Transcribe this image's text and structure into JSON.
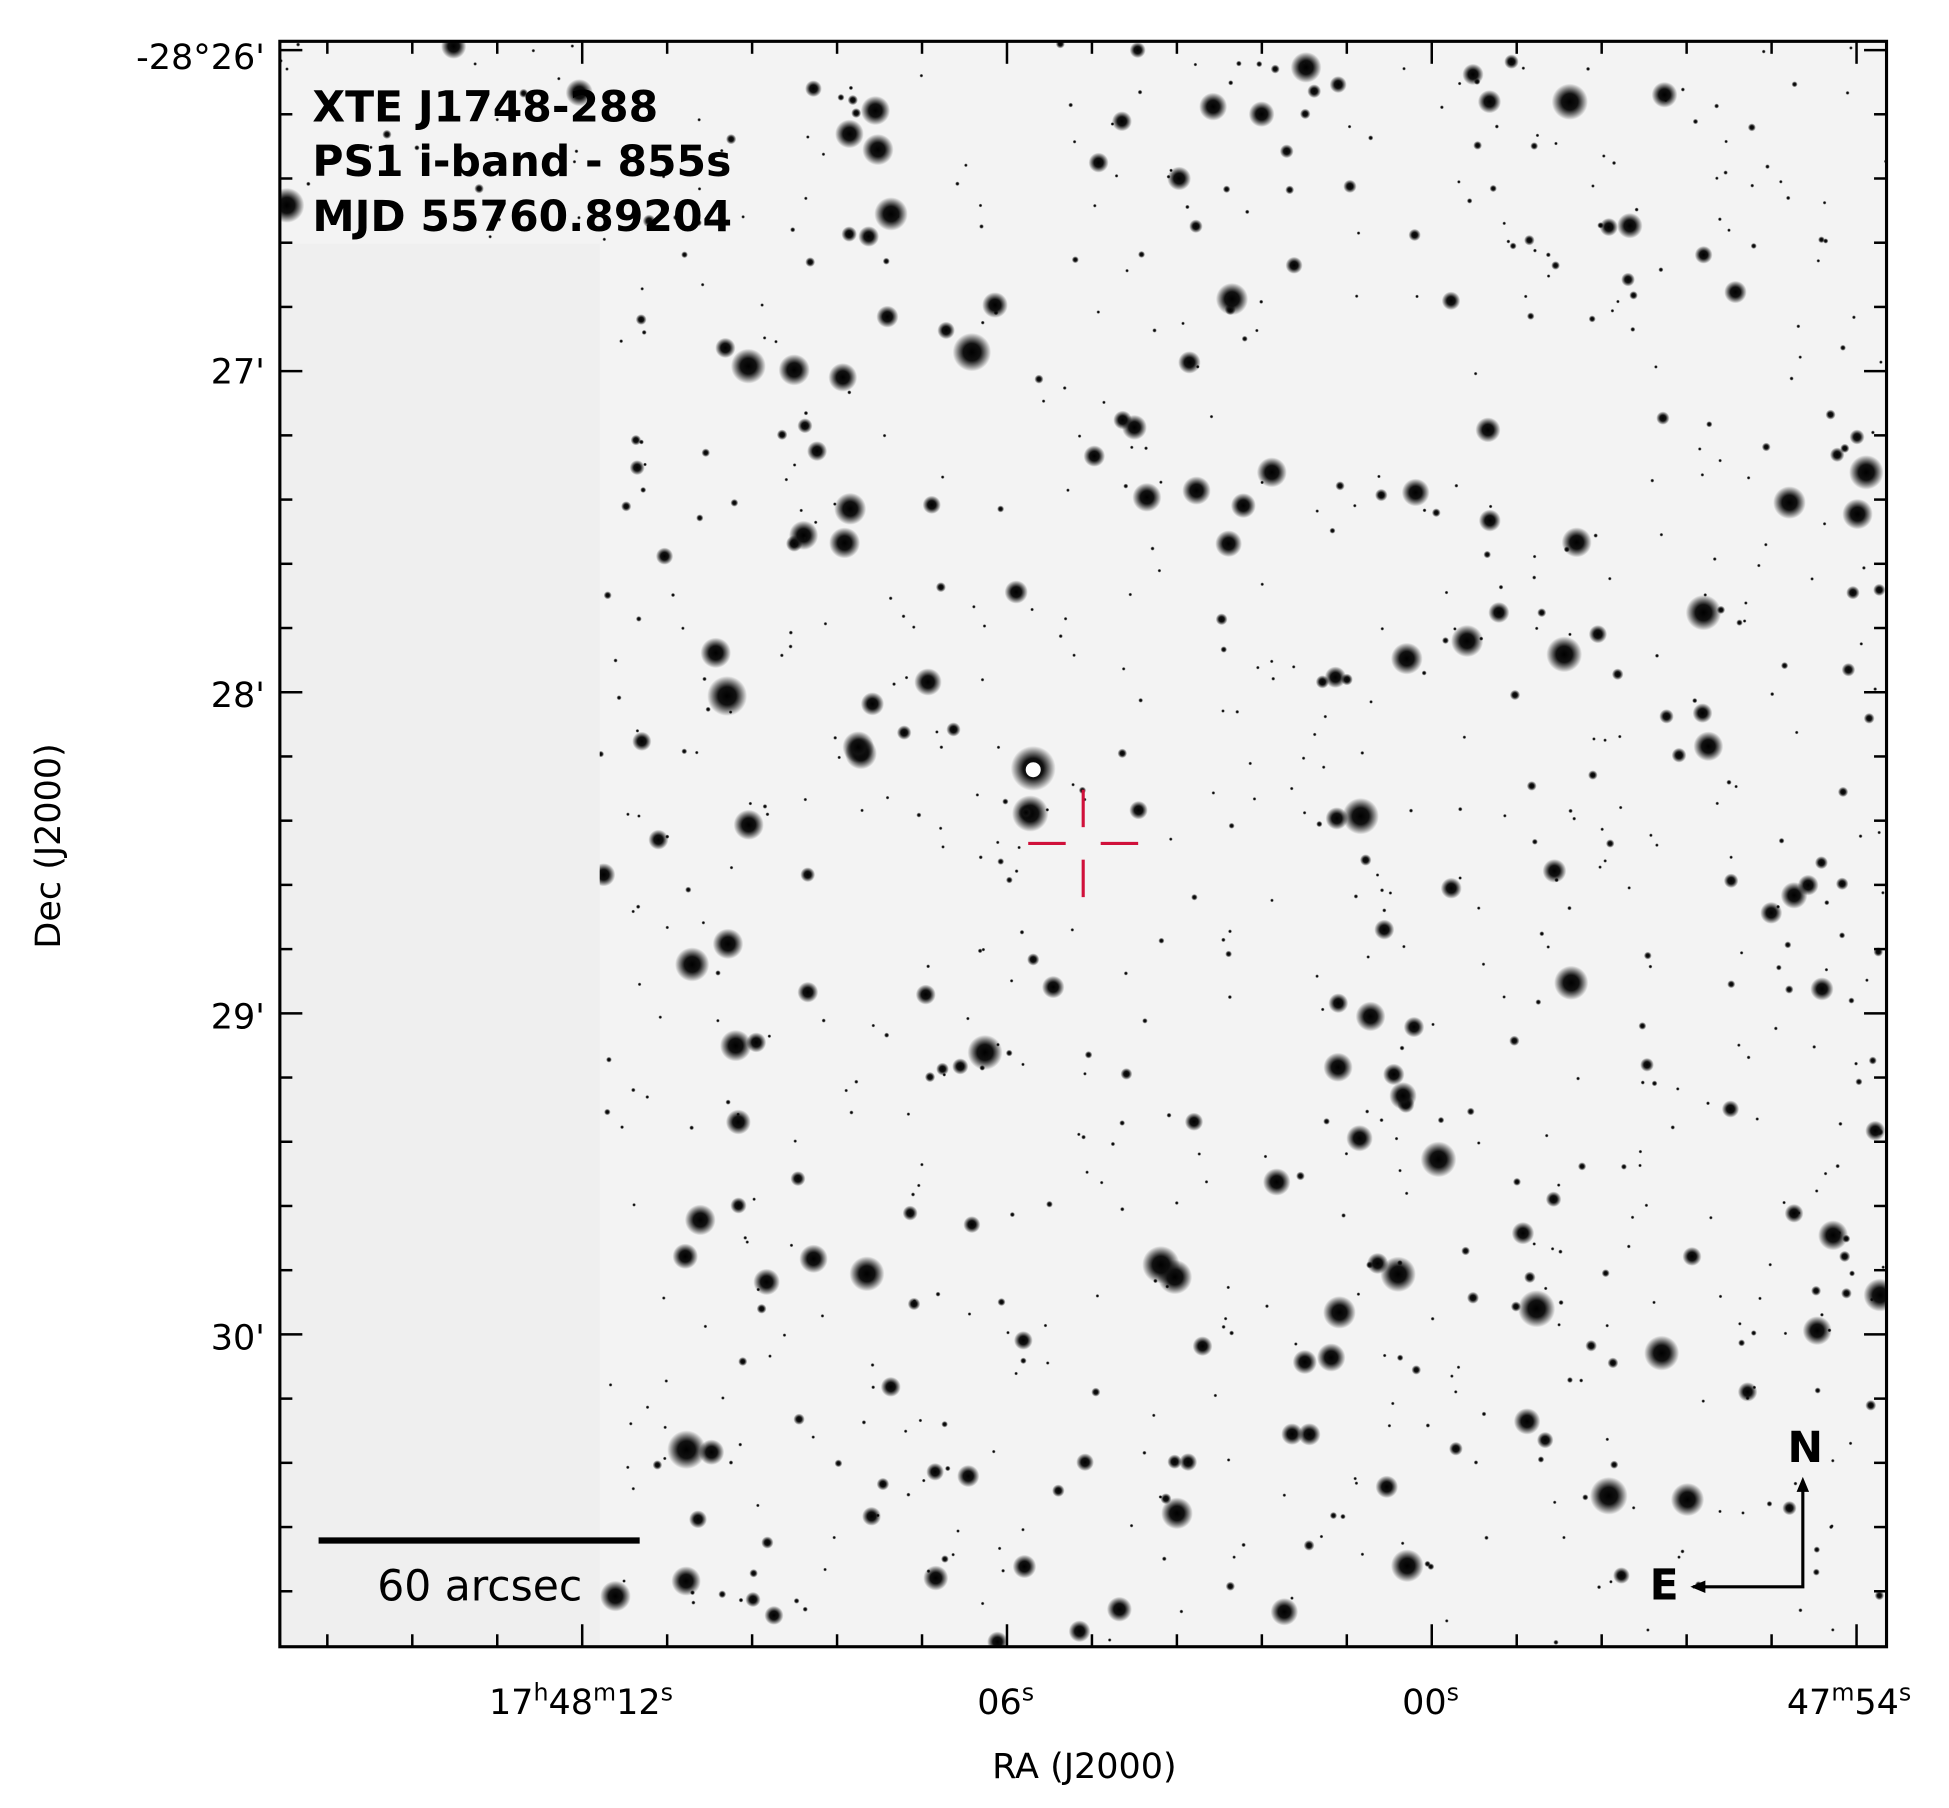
{
  "header": {
    "lines": [
      "XTE J1748-288",
      "PS1 i-band - 855s",
      "MJD 55760.89204"
    ]
  },
  "y_axis": {
    "label": "Dec (J2000)",
    "ticks": [
      "-28°26'",
      "27'",
      "28'",
      "29'",
      "30'"
    ]
  },
  "x_axis": {
    "label": "RA (J2000)",
    "ticks": [
      [
        "17",
        "h",
        "48",
        "m",
        "12",
        "s"
      ],
      [
        "06",
        "s"
      ],
      [
        "00",
        "s"
      ],
      [
        "47",
        "m",
        "54",
        "s"
      ]
    ]
  },
  "scale_bar": "60 arcsec",
  "compass": {
    "north": "N",
    "east": "E"
  }
}
